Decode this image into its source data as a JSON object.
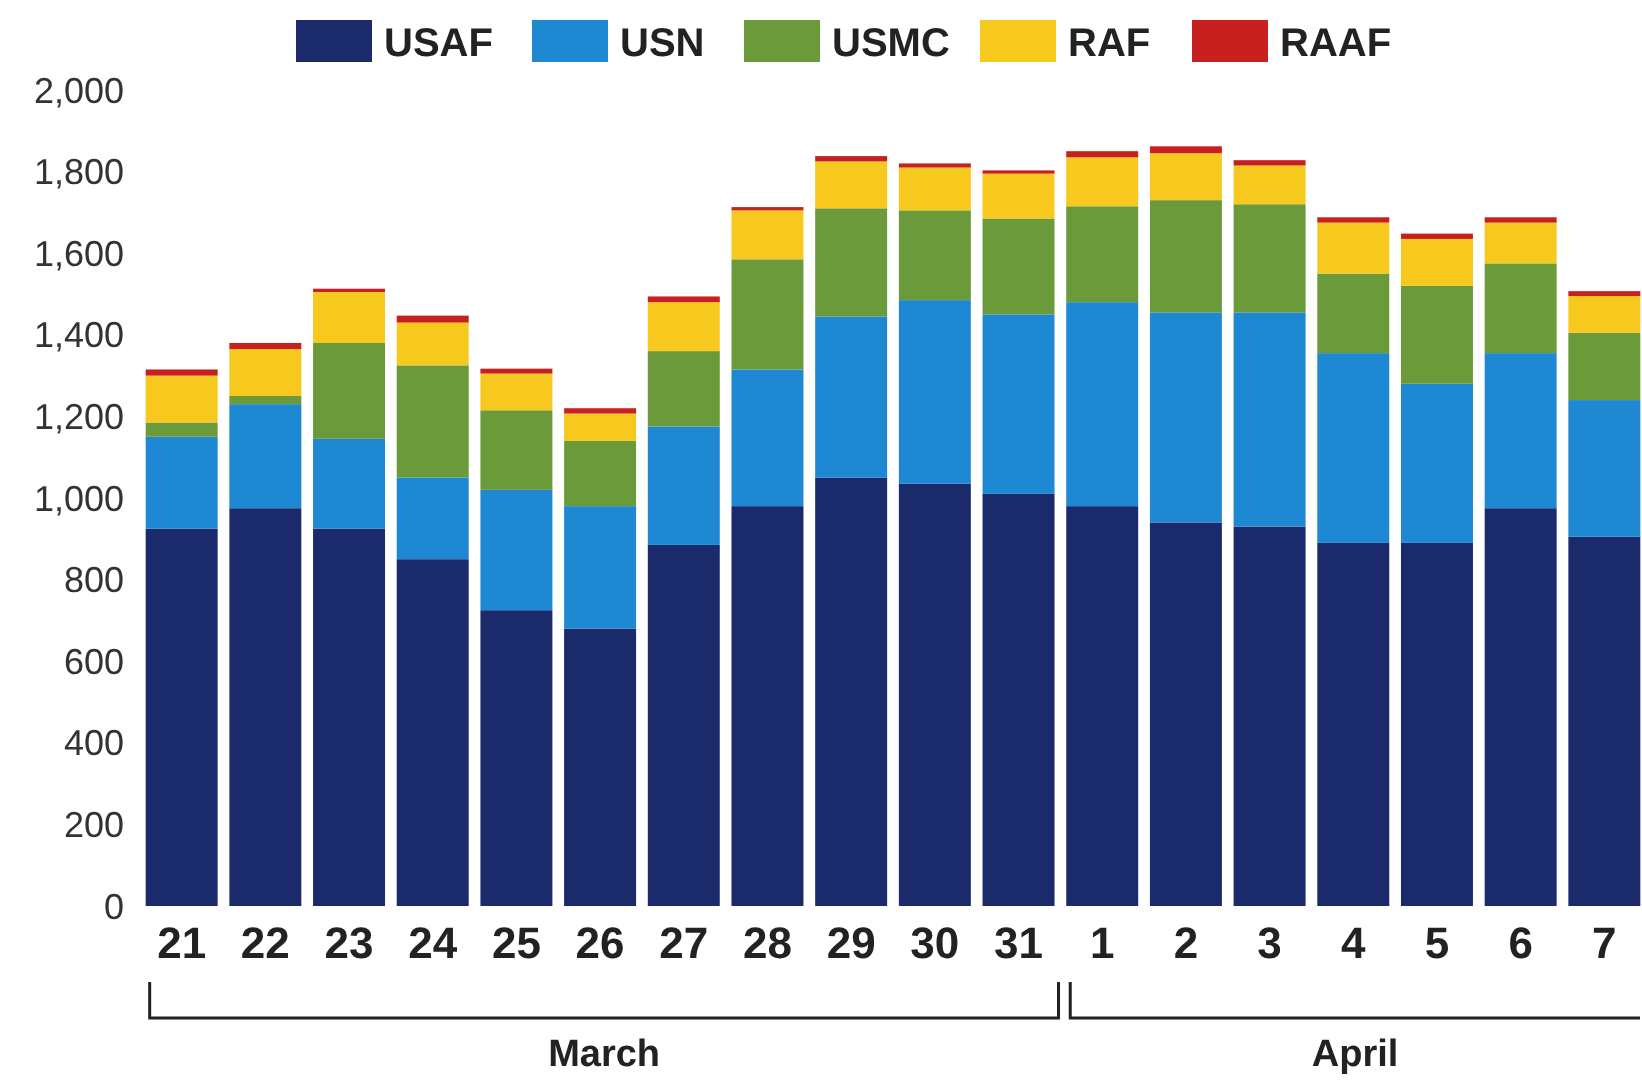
{
  "chart_data": {
    "type": "bar",
    "stacked": true,
    "categories": [
      "21",
      "22",
      "23",
      "24",
      "25",
      "26",
      "27",
      "28",
      "29",
      "30",
      "31",
      "1",
      "2",
      "3",
      "4",
      "5",
      "6",
      "7"
    ],
    "series": [
      {
        "name": "USAF",
        "color": "#1b2a6b",
        "values": [
          925,
          975,
          925,
          850,
          725,
          680,
          885,
          980,
          1050,
          1035,
          1010,
          980,
          940,
          930,
          890,
          890,
          975,
          905
        ]
      },
      {
        "name": "USN",
        "color": "#1e88d2",
        "values": [
          225,
          255,
          220,
          200,
          295,
          300,
          290,
          335,
          395,
          450,
          440,
          500,
          515,
          525,
          465,
          390,
          380,
          335
        ]
      },
      {
        "name": "USMC",
        "color": "#6b9a3a",
        "values": [
          35,
          20,
          235,
          275,
          195,
          160,
          185,
          270,
          265,
          220,
          235,
          235,
          275,
          265,
          195,
          240,
          220,
          165
        ]
      },
      {
        "name": "RAF",
        "color": "#f7c81e",
        "values": [
          115,
          115,
          125,
          105,
          90,
          67,
          120,
          120,
          115,
          105,
          110,
          120,
          115,
          95,
          125,
          115,
          100,
          90
        ]
      },
      {
        "name": "RAAF",
        "color": "#c8201e",
        "values": [
          15,
          15,
          8,
          17,
          12,
          13,
          14,
          8,
          13,
          10,
          8,
          15,
          17,
          13,
          13,
          13,
          13,
          12
        ]
      }
    ],
    "ylim": [
      0,
      2000
    ],
    "yticks": [
      0,
      {
        "value": 200,
        "label": "200"
      },
      {
        "value": 400,
        "label": "400"
      },
      {
        "value": 600,
        "label": "600"
      },
      {
        "value": 800,
        "label": "800"
      },
      {
        "value": 1000,
        "label": "1,000"
      },
      {
        "value": 1200,
        "label": "1,200"
      },
      {
        "value": 1400,
        "label": "1,400"
      },
      {
        "value": 1600,
        "label": "1,600"
      },
      {
        "value": 1800,
        "label": "1,800"
      },
      {
        "value": 2000,
        "label": "2,000"
      }
    ],
    "grid": false,
    "legend": "top",
    "annotations": [
      "March",
      "April"
    ]
  }
}
